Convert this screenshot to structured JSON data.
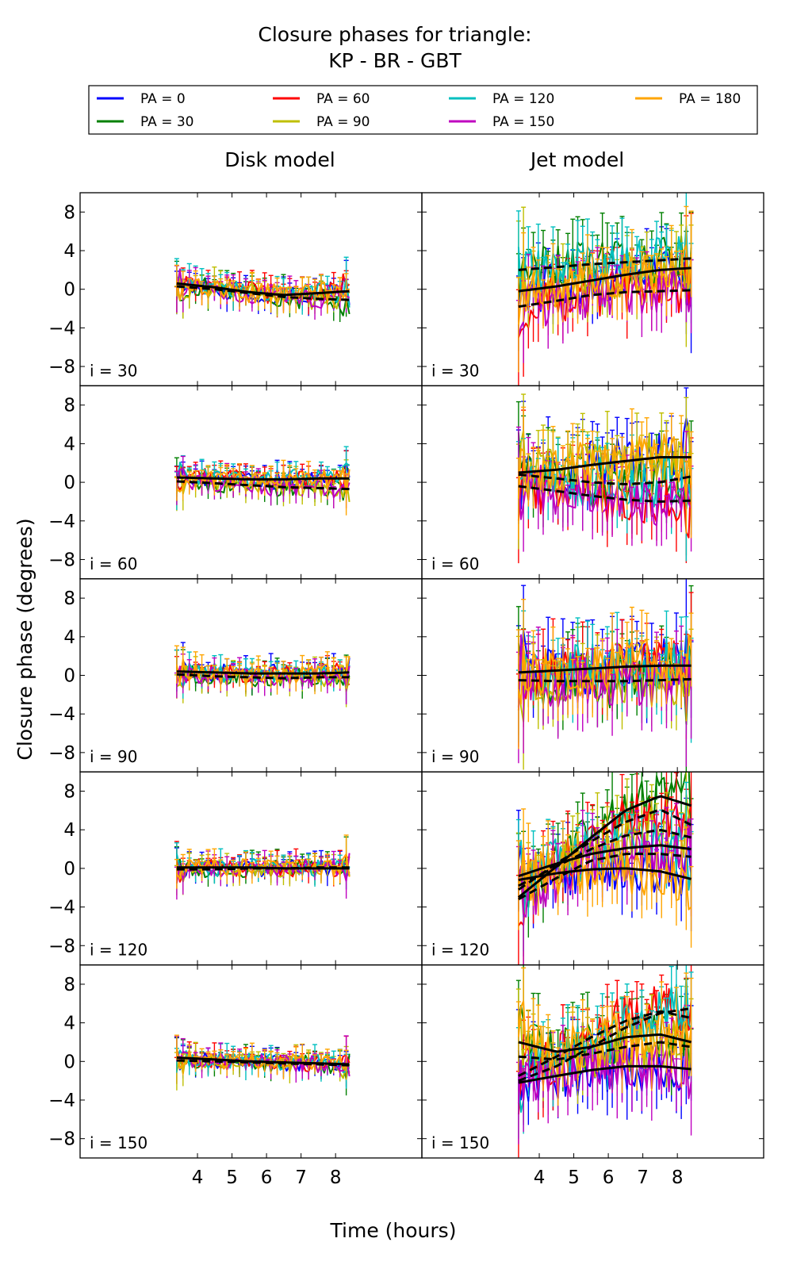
{
  "title_line1": "Closure phases for triangle:",
  "title_line2": "KP - BR - GBT",
  "col_titles": [
    "Disk model",
    "Jet model"
  ],
  "xlabel": "Time (hours)",
  "ylabel": "Closure phase (degrees)",
  "legend": [
    {
      "label": "PA = 0",
      "color": "#0000ff"
    },
    {
      "label": "PA = 30",
      "color": "#008000"
    },
    {
      "label": "PA = 60",
      "color": "#ff0000"
    },
    {
      "label": "PA = 90",
      "color": "#bfbf00"
    },
    {
      "label": "PA = 120",
      "color": "#00bfbf"
    },
    {
      "label": "PA = 150",
      "color": "#bf00bf"
    },
    {
      "label": "PA = 180",
      "color": "#ffa500"
    }
  ],
  "row_labels": [
    "i = 30",
    "i = 60",
    "i = 90",
    "i = 120",
    "i = 150"
  ],
  "chart_data": {
    "type": "line",
    "x_ticks": [
      4,
      5,
      6,
      7,
      8
    ],
    "y_ticks": [
      8,
      4,
      0,
      -4,
      -8
    ],
    "y_tick_labels": [
      "8",
      "4",
      "0",
      "−4",
      "−8"
    ],
    "xlim": [
      0.6,
      10.5
    ],
    "ylim": [
      -10,
      10
    ],
    "data_x_range": [
      3.4,
      8.4
    ],
    "grid": false,
    "legend_position": "top",
    "series_names": [
      "PA = 0",
      "PA = 30",
      "PA = 60",
      "PA = 90",
      "PA = 120",
      "PA = 150",
      "PA = 180"
    ],
    "panels": [
      {
        "model": "Disk model",
        "inclination": 30,
        "noise": 1.1,
        "model_curves": [
          {
            "style": "solid",
            "x": [
              3.4,
              4.5,
              5.5,
              6.5,
              7.5,
              8.4
            ],
            "y": [
              0.6,
              0.2,
              -0.3,
              -0.6,
              -0.4,
              -0.2
            ]
          },
          {
            "style": "dashed",
            "x": [
              3.4,
              4.5,
              5.5,
              6.5,
              7.5,
              8.4
            ],
            "y": [
              0.3,
              0.0,
              -0.4,
              -0.8,
              -1.0,
              -1.1
            ]
          }
        ]
      },
      {
        "model": "Jet model",
        "inclination": 30,
        "noise": 2.4,
        "model_curves": [
          {
            "style": "solid",
            "x": [
              3.4,
              4.5,
              5.5,
              6.5,
              7.5,
              8.4
            ],
            "y": [
              -0.2,
              0.3,
              0.9,
              1.5,
              2.0,
              2.2
            ]
          },
          {
            "style": "dashed",
            "x": [
              3.4,
              4.5,
              5.5,
              6.5,
              7.5,
              8.4
            ],
            "y": [
              2.0,
              2.3,
              2.6,
              2.8,
              3.0,
              3.2
            ]
          },
          {
            "style": "dashed",
            "x": [
              3.4,
              4.5,
              5.5,
              6.5,
              7.5,
              8.4
            ],
            "y": [
              -1.8,
              -1.2,
              -0.6,
              -0.3,
              -0.2,
              -0.1
            ]
          }
        ]
      },
      {
        "model": "Disk model",
        "inclination": 60,
        "noise": 1.0,
        "model_curves": [
          {
            "style": "solid",
            "x": [
              3.4,
              4.5,
              5.5,
              6.5,
              7.5,
              8.4
            ],
            "y": [
              0.5,
              0.4,
              0.3,
              0.3,
              0.4,
              0.4
            ]
          },
          {
            "style": "dashed",
            "x": [
              3.4,
              4.5,
              5.5,
              6.5,
              7.5,
              8.4
            ],
            "y": [
              0.1,
              -0.1,
              -0.3,
              -0.5,
              -0.6,
              -0.7
            ]
          }
        ]
      },
      {
        "model": "Jet model",
        "inclination": 60,
        "noise": 2.6,
        "model_curves": [
          {
            "style": "solid",
            "x": [
              3.4,
              4.5,
              5.5,
              6.5,
              7.5,
              8.4
            ],
            "y": [
              1.0,
              1.3,
              1.8,
              2.2,
              2.6,
              2.6
            ]
          },
          {
            "style": "dashed",
            "x": [
              3.4,
              4.5,
              5.5,
              6.5,
              7.5,
              8.4
            ],
            "y": [
              0.8,
              0.4,
              0.0,
              -0.2,
              0.0,
              0.6
            ]
          },
          {
            "style": "dashed",
            "x": [
              3.4,
              4.5,
              5.5,
              6.5,
              7.5,
              8.4
            ],
            "y": [
              -0.4,
              -0.9,
              -1.4,
              -1.8,
              -2.0,
              -1.9
            ]
          }
        ]
      },
      {
        "model": "Disk model",
        "inclination": 90,
        "noise": 1.0,
        "model_curves": [
          {
            "style": "solid",
            "x": [
              3.4,
              4.5,
              5.5,
              6.5,
              7.5,
              8.4
            ],
            "y": [
              0.4,
              0.3,
              0.2,
              0.2,
              0.2,
              0.3
            ]
          },
          {
            "style": "dashed",
            "x": [
              3.4,
              4.5,
              5.5,
              6.5,
              7.5,
              8.4
            ],
            "y": [
              0.1,
              -0.1,
              -0.2,
              -0.3,
              -0.2,
              -0.2
            ]
          }
        ]
      },
      {
        "model": "Jet model",
        "inclination": 90,
        "noise": 2.8,
        "model_curves": [
          {
            "style": "solid",
            "x": [
              3.4,
              4.5,
              5.5,
              6.5,
              7.5,
              8.4
            ],
            "y": [
              0.3,
              0.5,
              0.7,
              0.9,
              1.0,
              1.0
            ]
          },
          {
            "style": "dashed",
            "x": [
              3.4,
              4.5,
              5.5,
              6.5,
              7.5,
              8.4
            ],
            "y": [
              -0.5,
              -0.6,
              -0.6,
              -0.6,
              -0.5,
              -0.4
            ]
          }
        ]
      },
      {
        "model": "Disk model",
        "inclination": 120,
        "noise": 0.9,
        "model_curves": [
          {
            "style": "solid",
            "x": [
              3.4,
              4.5,
              5.5,
              6.5,
              7.5,
              8.4
            ],
            "y": [
              0.1,
              0.1,
              0.1,
              0.0,
              0.0,
              0.0
            ]
          },
          {
            "style": "dashed",
            "x": [
              3.4,
              4.5,
              5.5,
              6.5,
              7.5,
              8.4
            ],
            "y": [
              -0.1,
              -0.1,
              0.0,
              0.0,
              0.1,
              0.1
            ]
          }
        ]
      },
      {
        "model": "Jet model",
        "inclination": 120,
        "noise": 2.6,
        "model_curves": [
          {
            "style": "solid",
            "x": [
              3.4,
              4.5,
              5.5,
              6.5,
              7.5,
              8.4
            ],
            "y": [
              -1.2,
              -0.5,
              -0.1,
              0.0,
              -0.3,
              -1.1
            ]
          },
          {
            "style": "solid",
            "x": [
              3.4,
              4.5,
              5.5,
              6.5,
              7.5,
              8.4
            ],
            "y": [
              -3.0,
              0.2,
              3.2,
              6.0,
              7.5,
              6.5
            ]
          },
          {
            "style": "dashed",
            "x": [
              3.4,
              4.5,
              5.5,
              6.5,
              7.5,
              8.4
            ],
            "y": [
              -2.2,
              0.5,
              2.8,
              4.8,
              6.1,
              4.5
            ]
          },
          {
            "style": "dashed",
            "x": [
              3.4,
              4.5,
              5.5,
              6.5,
              7.5,
              8.4
            ],
            "y": [
              -1.8,
              0.2,
              2.0,
              3.4,
              4.0,
              3.2
            ]
          },
          {
            "style": "solid",
            "x": [
              3.4,
              4.5,
              5.5,
              6.5,
              7.5,
              8.4
            ],
            "y": [
              -0.8,
              0.5,
              1.5,
              2.1,
              2.4,
              2.0
            ]
          },
          {
            "style": "dashed",
            "x": [
              3.4,
              4.5,
              5.5,
              6.5,
              7.5,
              8.4
            ],
            "y": [
              -3.2,
              -1.0,
              0.8,
              1.5,
              1.5,
              1.2
            ]
          }
        ]
      },
      {
        "model": "Disk model",
        "inclination": 150,
        "noise": 0.9,
        "model_curves": [
          {
            "style": "solid",
            "x": [
              3.4,
              4.5,
              5.5,
              6.5,
              7.5,
              8.4
            ],
            "y": [
              0.4,
              0.2,
              0.0,
              -0.1,
              -0.2,
              -0.3
            ]
          },
          {
            "style": "dashed",
            "x": [
              3.4,
              4.5,
              5.5,
              6.5,
              7.5,
              8.4
            ],
            "y": [
              0.1,
              0.0,
              -0.1,
              -0.2,
              -0.3,
              -0.4
            ]
          }
        ]
      },
      {
        "model": "Jet model",
        "inclination": 150,
        "noise": 2.7,
        "model_curves": [
          {
            "style": "solid",
            "x": [
              3.4,
              4.5,
              5.5,
              6.5,
              7.5,
              8.4
            ],
            "y": [
              -2.2,
              -1.5,
              -0.9,
              -0.5,
              -0.5,
              -0.8
            ]
          },
          {
            "style": "solid",
            "x": [
              3.4,
              4.5,
              5.5,
              6.5,
              7.5,
              8.4
            ],
            "y": [
              2.0,
              1.0,
              1.5,
              2.5,
              2.8,
              2.0
            ]
          },
          {
            "style": "dashed",
            "x": [
              3.4,
              4.5,
              5.5,
              6.5,
              7.5,
              8.4
            ],
            "y": [
              -1.5,
              0.5,
              2.5,
              4.2,
              5.2,
              4.5
            ]
          },
          {
            "style": "dashed",
            "x": [
              3.4,
              4.5,
              5.5,
              6.5,
              7.5,
              8.4
            ],
            "y": [
              0.5,
              0.2,
              0.8,
              1.5,
              2.0,
              1.5
            ]
          },
          {
            "style": "dashed",
            "x": [
              3.4,
              4.5,
              5.5,
              6.5,
              7.5,
              8.4
            ],
            "y": [
              -2.0,
              -0.5,
              1.5,
              3.5,
              5.0,
              5.5
            ]
          }
        ]
      }
    ]
  }
}
